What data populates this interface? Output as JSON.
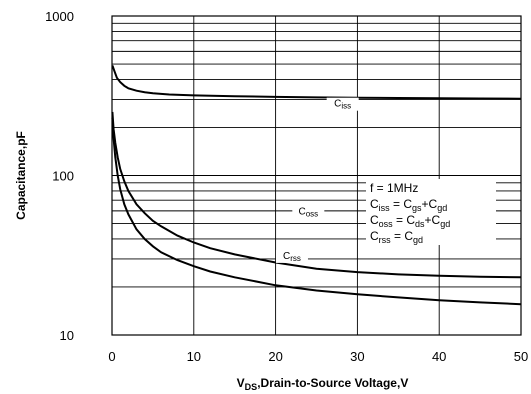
{
  "chart_data": {
    "type": "line",
    "title": "",
    "xlabel": "V<sub>DS</sub>,Drain-to-Source Voltage,V",
    "xlabel_main": "V",
    "xlabel_sub": "DS",
    "xlabel_rest": ",Drain-to-Source Voltage,V",
    "ylabel": "Capacitance,pF",
    "xlim": [
      0,
      50
    ],
    "ylim": [
      10,
      1000
    ],
    "yscale": "log",
    "grid": true,
    "x_ticks": [
      "0",
      "10",
      "20",
      "30",
      "40",
      "50"
    ],
    "y_ticks": [
      "10",
      "100",
      "1000"
    ],
    "annotation_lines": [
      {
        "main": "f = 1MHz",
        "parts": []
      },
      {
        "parts": [
          [
            "C",
            ""
          ],
          [
            "iss",
            "sub"
          ],
          [
            " = C",
            ""
          ],
          [
            "gs",
            "sub"
          ],
          [
            "+C",
            ""
          ],
          [
            "gd",
            "sub"
          ]
        ]
      },
      {
        "parts": [
          [
            "C",
            ""
          ],
          [
            "oss",
            "sub"
          ],
          [
            " = C",
            ""
          ],
          [
            "ds",
            "sub"
          ],
          [
            "+C",
            ""
          ],
          [
            "gd",
            "sub"
          ]
        ]
      },
      {
        "parts": [
          [
            "C",
            ""
          ],
          [
            "rss",
            "sub"
          ],
          [
            " = C",
            ""
          ],
          [
            "gd",
            "sub"
          ]
        ]
      }
    ],
    "series": [
      {
        "label_main": "C",
        "label_sub": "iss",
        "x": [
          0.05,
          0.3,
          0.6,
          1,
          1.5,
          2,
          3,
          4,
          5,
          7,
          10,
          15,
          20,
          25,
          30,
          35,
          40,
          45,
          50
        ],
        "y": [
          490,
          450,
          410,
          385,
          365,
          352,
          340,
          333,
          328,
          322,
          318,
          314,
          311,
          309,
          307,
          306,
          305,
          304,
          303
        ],
        "label_x": 28.2,
        "label_y": 270
      },
      {
        "label_main": "C",
        "label_sub": "oss",
        "x": [
          0.05,
          0.2,
          0.4,
          0.7,
          1,
          1.5,
          2,
          3,
          4,
          5,
          6,
          8,
          10,
          12,
          15,
          20,
          25,
          30,
          35,
          40,
          45,
          50
        ],
        "y": [
          250,
          195,
          160,
          130,
          110,
          92,
          80,
          66,
          58,
          52,
          48,
          42,
          38,
          35,
          32,
          28.5,
          26,
          24.8,
          24,
          23.5,
          23.2,
          23
        ],
        "label_x": 24,
        "label_y": 57
      },
      {
        "label_main": "C",
        "label_sub": "rss",
        "x": [
          0.05,
          0.2,
          0.4,
          0.7,
          1,
          1.5,
          2,
          3,
          4,
          5,
          6,
          8,
          10,
          12,
          15,
          20,
          25,
          30,
          35,
          40,
          45,
          50
        ],
        "y": [
          230,
          170,
          130,
          100,
          82,
          66,
          57,
          46,
          40,
          36,
          33,
          29.5,
          27,
          25,
          23,
          20.5,
          19,
          18,
          17.2,
          16.5,
          16,
          15.6
        ],
        "label_x": 22,
        "label_y": 30
      }
    ]
  }
}
